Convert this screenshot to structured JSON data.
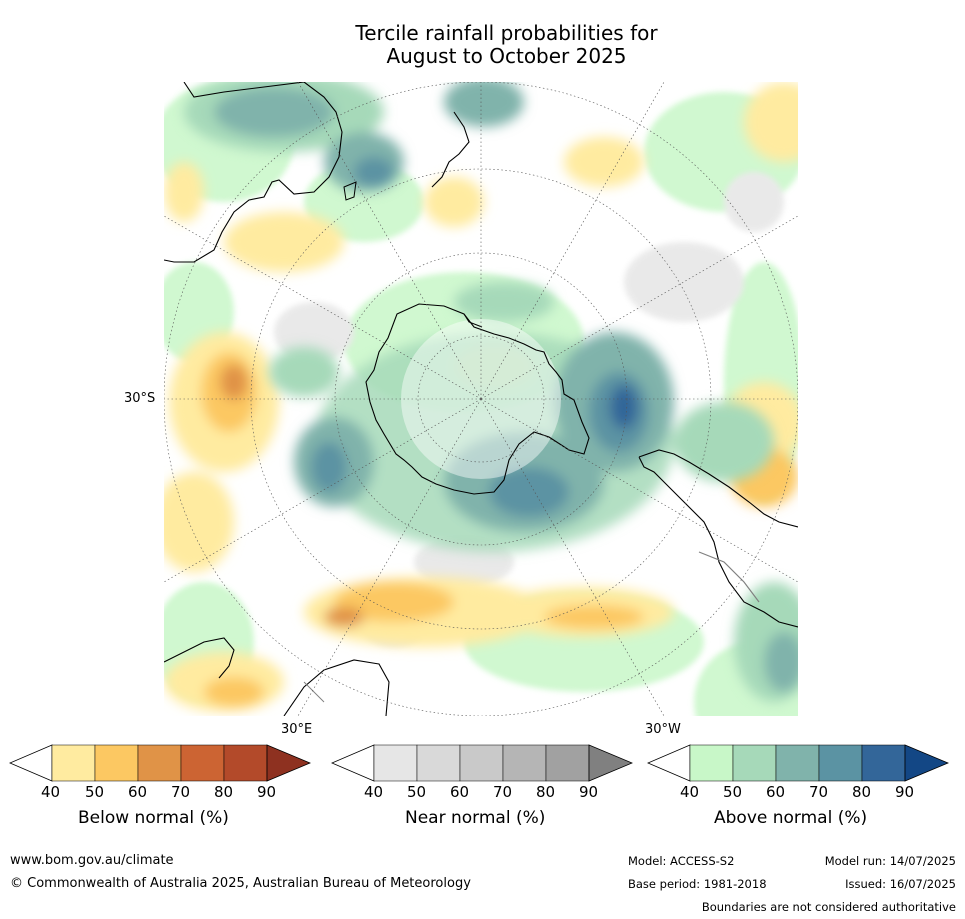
{
  "title": {
    "line1": "Tercile rainfall probabilities for",
    "line2": "August to October 2025"
  },
  "map": {
    "labels": {
      "lat_30s": "30°S",
      "lon_30e": "30°E",
      "lon_30w": "30°W"
    }
  },
  "colorbars": {
    "below": {
      "title": "Below normal (%)",
      "ticks": [
        "40",
        "50",
        "60",
        "70",
        "80",
        "90"
      ],
      "colors": [
        "#ffffff",
        "#ffeba0",
        "#fcc862",
        "#e09347",
        "#cc6433",
        "#b34a2a",
        "#8e3120"
      ]
    },
    "near": {
      "title": "Near normal (%)",
      "ticks": [
        "40",
        "50",
        "60",
        "70",
        "80",
        "90"
      ],
      "colors": [
        "#ffffff",
        "#e6e6e6",
        "#d9d9d9",
        "#c9c9c9",
        "#b5b5b5",
        "#a1a1a1",
        "#808080"
      ]
    },
    "above": {
      "title": "Above normal (%)",
      "ticks": [
        "40",
        "50",
        "60",
        "70",
        "80",
        "90"
      ],
      "colors": [
        "#ffffff",
        "#c8f7c8",
        "#a6d9b9",
        "#80b3ab",
        "#5b93a3",
        "#336699",
        "#134785"
      ]
    }
  },
  "footer": {
    "website": "www.bom.gov.au/climate",
    "copyright": "© Commonwealth of Australia 2025, Australian Bureau of Meteorology",
    "model": "Model: ACCESS-S2",
    "model_run": "Model run: 14/07/2025",
    "base_period": "Base period: 1981-2018",
    "issued": "Issued: 16/07/2025",
    "disclaimer": "Boundaries are not considered authoritative"
  }
}
